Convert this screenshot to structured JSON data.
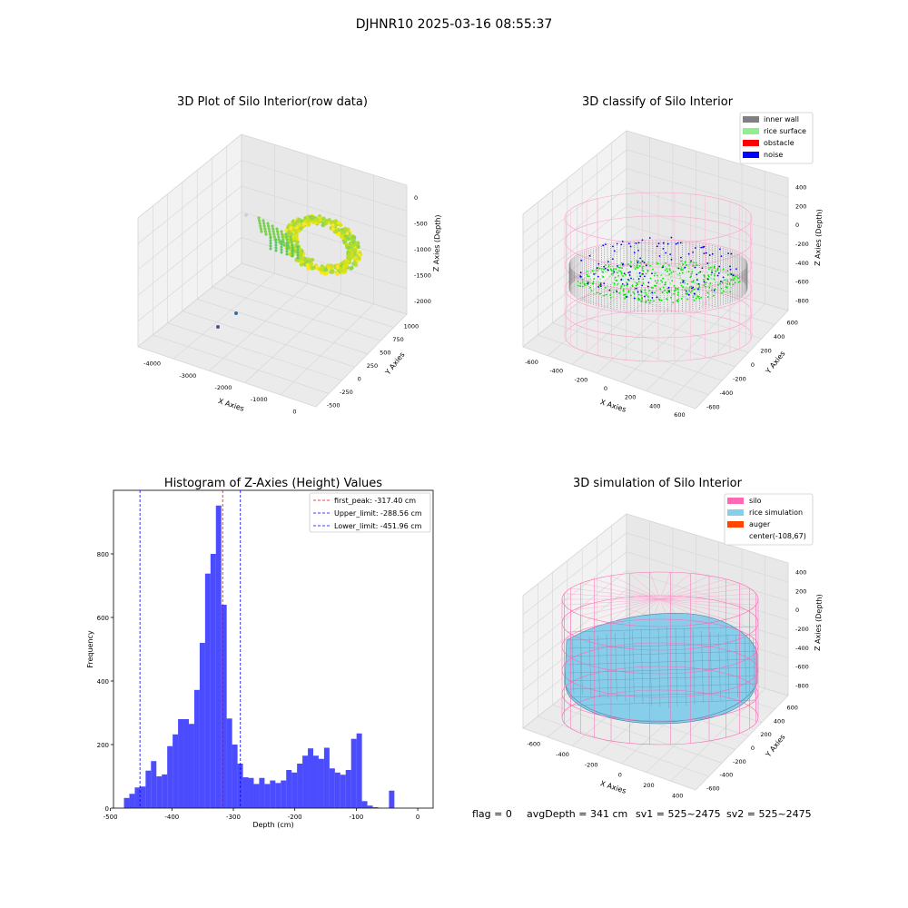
{
  "suptitle": "DJHNR10 2025-03-16 08:55:37",
  "footer": {
    "flag": "flag = 0",
    "avg": "avgDepth = 341 cm",
    "sv1": "sv1 = 525~2475",
    "sv2": "sv2 = 525~2475"
  },
  "chart_data": [
    {
      "type": "scatter",
      "title": "3D Plot of Silo Interior(row data)",
      "xlabel": "X Axies",
      "ylabel": "Y Axies",
      "zlabel": "Z Axies (Depth)",
      "x_ticks": [
        "-4000",
        "-3000",
        "-2000",
        "-1000",
        "0"
      ],
      "y_ticks": [
        "-500",
        "-250",
        "0",
        "250",
        "500",
        "750",
        "1000"
      ],
      "z_ticks": [
        "-2000",
        "-1500",
        "-1000",
        "-500",
        "0"
      ],
      "colormap": "viridis (yellow-green)",
      "grid": true
    },
    {
      "type": "scatter",
      "title": "3D classify of Silo Interior",
      "xlabel": "X Axies",
      "ylabel": "Y Axies",
      "zlabel": "Z Axies (Depth)",
      "x_ticks": [
        "-600",
        "-400",
        "-200",
        "0",
        "200",
        "400",
        "600"
      ],
      "y_ticks": [
        "-600",
        "-400",
        "-200",
        "0",
        "200",
        "400",
        "600"
      ],
      "z_ticks": [
        "-800",
        "-600",
        "-400",
        "-200",
        "0",
        "200",
        "400"
      ],
      "legend": [
        {
          "label": "inner wall",
          "color": "#808080"
        },
        {
          "label": "rice surface",
          "color": "#90ee90"
        },
        {
          "label": "obstacle",
          "color": "#ff0000"
        },
        {
          "label": "noise",
          "color": "#0000ff"
        }
      ],
      "legend_position": "top-right",
      "grid": true
    },
    {
      "type": "bar",
      "title": "Histogram of Z-Axies (Height) Values",
      "xlabel": "Depth (cm)",
      "ylabel": "Frequency",
      "xlim": [
        -495,
        25
      ],
      "ylim": [
        0,
        1000
      ],
      "x_ticks": [
        -500,
        -400,
        -300,
        -200,
        -100,
        0
      ],
      "y_ticks": [
        0,
        200,
        400,
        600,
        800
      ],
      "bin_width": 8.8,
      "bin_start": -478,
      "values": [
        32,
        45,
        65,
        68,
        118,
        148,
        100,
        106,
        195,
        232,
        280,
        280,
        265,
        372,
        520,
        738,
        800,
        952,
        640,
        282,
        200,
        140,
        97,
        95,
        76,
        95,
        76,
        87,
        79,
        87,
        120,
        112,
        140,
        165,
        188,
        165,
        155,
        190,
        125,
        112,
        105,
        120,
        218,
        235,
        22,
        8,
        3,
        0,
        0,
        55
      ],
      "bar_color": "#0000ff",
      "lines": [
        {
          "label": "first_peak: -317.40 cm",
          "x": -317.4,
          "color": "#ff0000"
        },
        {
          "label": "Upper_limit: -288.56 cm",
          "x": -288.56,
          "color": "#0000ff"
        },
        {
          "label": "Lower_limit: -451.96 cm",
          "x": -451.96,
          "color": "#0000ff"
        }
      ],
      "legend_position": "top-right"
    },
    {
      "type": "surface",
      "title": "3D simulation of Silo Interior",
      "xlabel": "X Axies",
      "ylabel": "Y Axies",
      "zlabel": "Z Axies (Depth)",
      "x_ticks": [
        "-600",
        "-400",
        "-200",
        "0",
        "200",
        "400"
      ],
      "y_ticks": [
        "-600",
        "-400",
        "-200",
        "0",
        "200",
        "400",
        "600"
      ],
      "z_ticks": [
        "-800",
        "-600",
        "-400",
        "-200",
        "0",
        "200",
        "400"
      ],
      "legend": [
        {
          "label": "silo",
          "color": "#ff69b4"
        },
        {
          "label": "rice simulation",
          "color": "#87ceeb"
        },
        {
          "label": "auger",
          "color": "#ff4500"
        },
        {
          "label": "center(-108,67)",
          "color": ""
        }
      ],
      "legend_position": "top-right",
      "grid": true
    }
  ]
}
